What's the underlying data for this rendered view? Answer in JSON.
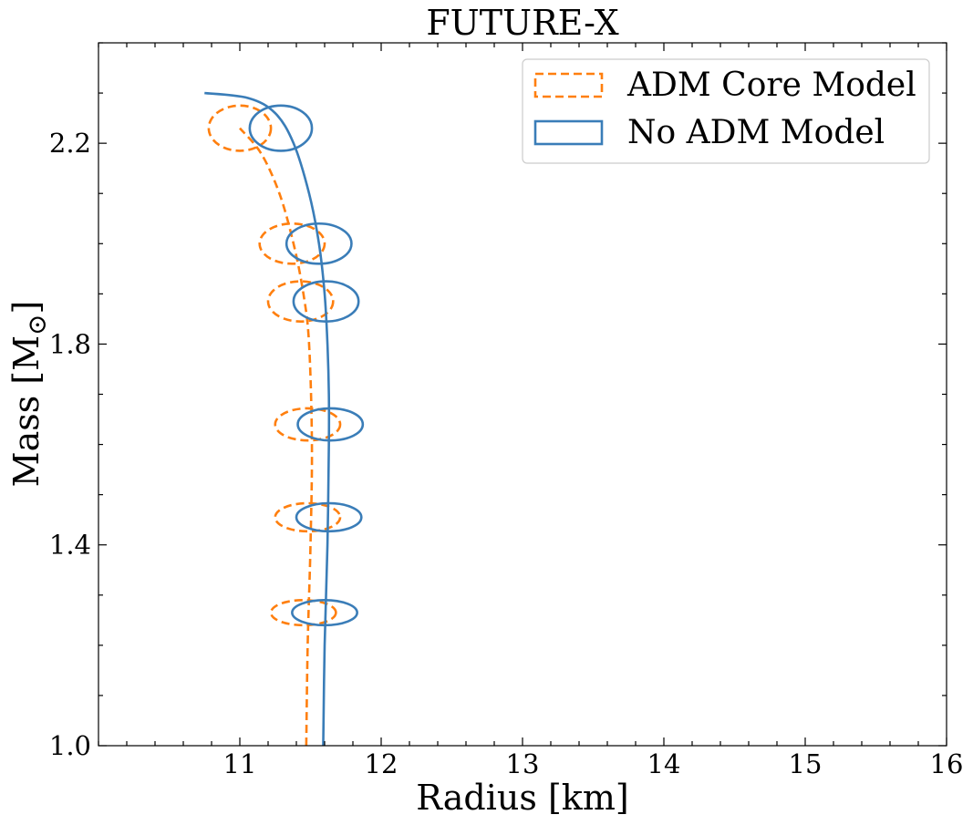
{
  "chart_data": {
    "type": "line",
    "title": "FUTURE-X",
    "xlabel": "Radius [km]",
    "ylabel": "Mass [M",
    "ylabel_symbol": "⊙",
    "ylabel_close": "]",
    "xlim": [
      10,
      16
    ],
    "ylim": [
      1.0,
      2.4
    ],
    "xticks": [
      11,
      12,
      13,
      14,
      15,
      16
    ],
    "xtick_labels": [
      "11",
      "12",
      "13",
      "14",
      "15",
      "16"
    ],
    "yticks": [
      1.0,
      1.4,
      1.8,
      2.2
    ],
    "ytick_labels": [
      "1.0",
      "1.4",
      "1.8",
      "2.2"
    ],
    "grid": false,
    "legend_position": "top-right",
    "series": [
      {
        "name": "ADM Core Model",
        "color": "#ff7f0e",
        "style": "dashed",
        "curve": [
          [
            11.47,
            1.0
          ],
          [
            11.48,
            1.2
          ],
          [
            11.5,
            1.4
          ],
          [
            11.51,
            1.6
          ],
          [
            11.49,
            1.8
          ],
          [
            11.45,
            1.9
          ],
          [
            11.38,
            2.0
          ],
          [
            11.28,
            2.1
          ],
          [
            11.15,
            2.18
          ],
          [
            11.0,
            2.23
          ]
        ],
        "ellipses": [
          {
            "x": 11.0,
            "y": 2.23,
            "rx": 0.22,
            "ry": 0.045
          },
          {
            "x": 11.37,
            "y": 2.0,
            "rx": 0.23,
            "ry": 0.04
          },
          {
            "x": 11.43,
            "y": 1.885,
            "rx": 0.23,
            "ry": 0.04
          },
          {
            "x": 11.48,
            "y": 1.64,
            "rx": 0.23,
            "ry": 0.032
          },
          {
            "x": 11.48,
            "y": 1.455,
            "rx": 0.23,
            "ry": 0.028
          },
          {
            "x": 11.45,
            "y": 1.265,
            "rx": 0.23,
            "ry": 0.025
          }
        ]
      },
      {
        "name": "No ADM Model",
        "color": "#3a7db8",
        "style": "solid",
        "curve": [
          [
            11.59,
            1.0
          ],
          [
            11.6,
            1.2
          ],
          [
            11.62,
            1.4
          ],
          [
            11.63,
            1.6
          ],
          [
            11.63,
            1.7
          ],
          [
            11.62,
            1.8
          ],
          [
            11.6,
            1.9
          ],
          [
            11.56,
            2.0
          ],
          [
            11.49,
            2.1
          ],
          [
            11.38,
            2.2
          ],
          [
            11.25,
            2.26
          ],
          [
            11.06,
            2.29
          ],
          [
            10.75,
            2.3
          ]
        ],
        "ellipses": [
          {
            "x": 11.29,
            "y": 2.23,
            "rx": 0.22,
            "ry": 0.045
          },
          {
            "x": 11.56,
            "y": 2.0,
            "rx": 0.23,
            "ry": 0.04
          },
          {
            "x": 11.61,
            "y": 1.885,
            "rx": 0.23,
            "ry": 0.04
          },
          {
            "x": 11.64,
            "y": 1.64,
            "rx": 0.23,
            "ry": 0.032
          },
          {
            "x": 11.63,
            "y": 1.455,
            "rx": 0.23,
            "ry": 0.028
          },
          {
            "x": 11.6,
            "y": 1.265,
            "rx": 0.23,
            "ry": 0.025
          }
        ]
      }
    ]
  }
}
